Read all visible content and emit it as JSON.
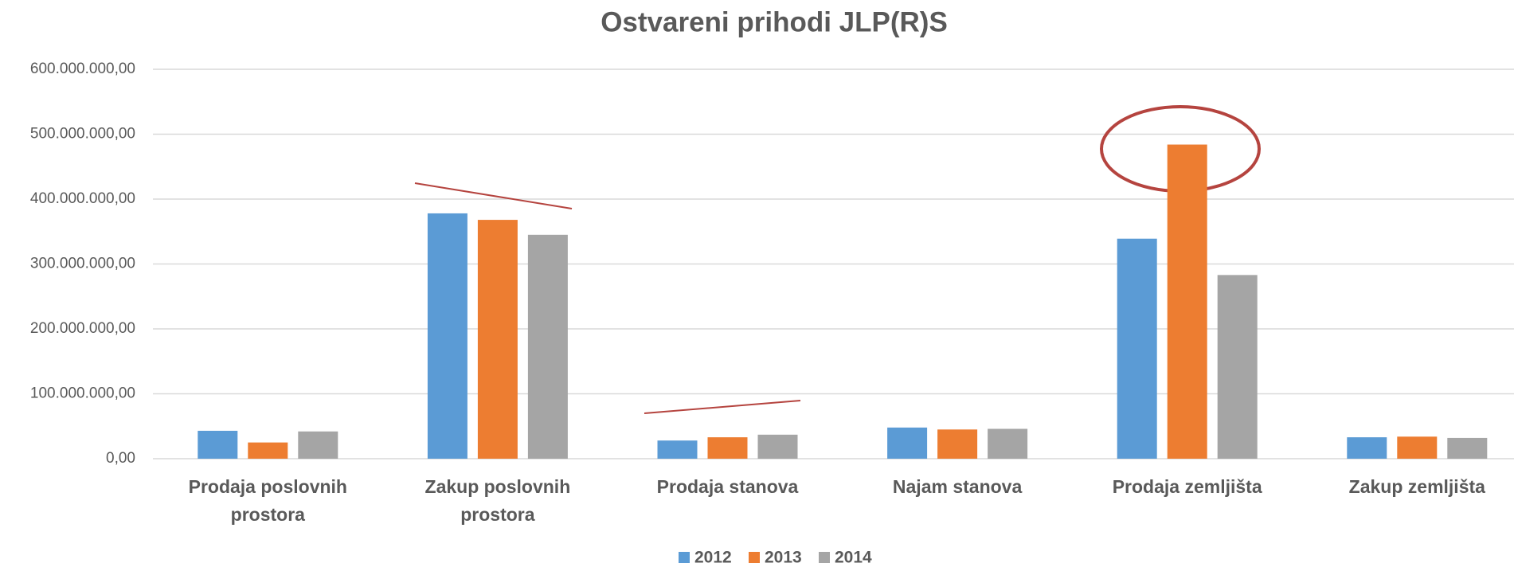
{
  "chart_data": {
    "type": "bar",
    "title": "Ostvareni prihodi JLP(R)S",
    "categories": [
      "Prodaja poslovnih prostora",
      "Zakup poslovnih prostora",
      "Prodaja stanova",
      "Najam stanova",
      "Prodaja zemljišta",
      "Zakup zemljišta"
    ],
    "series": [
      {
        "name": "2012",
        "color": "#5b9bd5",
        "values": [
          43000000,
          378000000,
          28000000,
          48000000,
          339000000,
          33000000
        ]
      },
      {
        "name": "2013",
        "color": "#ed7d31",
        "values": [
          25000000,
          368000000,
          33000000,
          45000000,
          484000000,
          34000000
        ]
      },
      {
        "name": "2014",
        "color": "#a5a5a5",
        "values": [
          42000000,
          345000000,
          37000000,
          46000000,
          283000000,
          32000000
        ]
      }
    ],
    "ylim": [
      0,
      600000000
    ],
    "yticks": [
      {
        "value": 0,
        "label": "0,00"
      },
      {
        "value": 100000000,
        "label": "100.000.000,00"
      },
      {
        "value": 200000000,
        "label": "200.000.000,00"
      },
      {
        "value": 300000000,
        "label": "300.000.000,00"
      },
      {
        "value": 400000000,
        "label": "400.000.000,00"
      },
      {
        "value": 500000000,
        "label": "500.000.000,00"
      },
      {
        "value": 600000000,
        "label": "600.000.000,00"
      }
    ],
    "grid": true,
    "legend": "bottom"
  }
}
